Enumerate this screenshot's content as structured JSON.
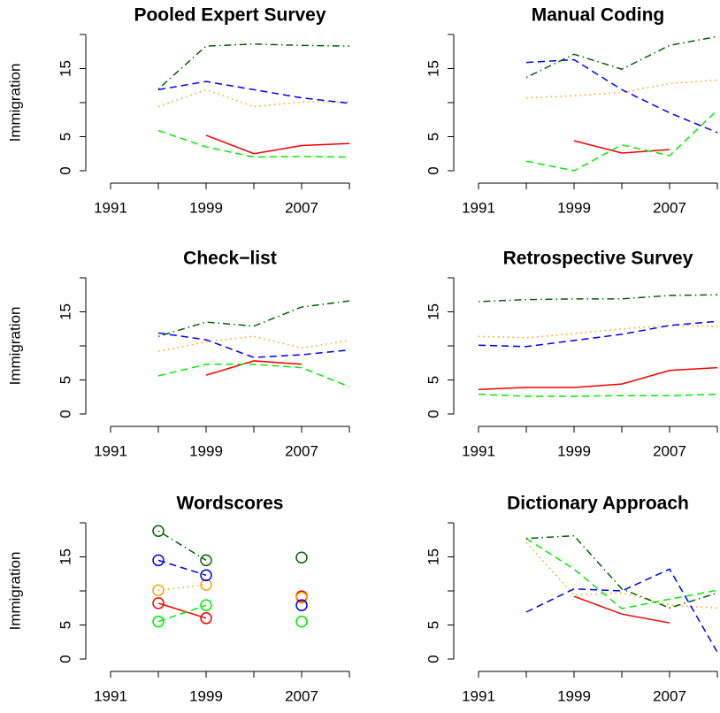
{
  "chart_data": [
    {
      "type": "line",
      "title": "Pooled Expert Survey",
      "ylabel": "Immigration",
      "x": [
        1991,
        1995,
        1999,
        2003,
        2007,
        2011
      ],
      "xlim": [
        1991,
        2011
      ],
      "ylim": [
        0,
        20
      ],
      "xticks": [
        1991,
        {
          "value": 1995,
          "label": null
        },
        1999,
        {
          "value": 2003,
          "label": null
        },
        2007,
        {
          "value": 2011,
          "label": null
        }
      ],
      "yticks": [
        0,
        5,
        {
          "value": 10,
          "label": null
        },
        15,
        {
          "value": 20,
          "label": null
        }
      ],
      "series": [
        {
          "color": "#ff0000",
          "linetype": "solid",
          "values": [
            null,
            null,
            5.2,
            2.5,
            3.7,
            4.0
          ]
        },
        {
          "color": "#00ee00",
          "linetype": "dashed",
          "values": [
            null,
            5.9,
            3.5,
            2.0,
            2.1,
            2.0
          ]
        },
        {
          "color": "#ffa500",
          "linetype": "dotted",
          "values": [
            null,
            9.4,
            11.9,
            9.4,
            10.1,
            10.1
          ]
        },
        {
          "color": "#0000ff",
          "linetype": "dashed",
          "values": [
            null,
            11.9,
            13.1,
            11.9,
            10.7,
            9.9
          ]
        },
        {
          "color": "#006400",
          "linetype": "dotdash",
          "values": [
            null,
            12.0,
            18.3,
            18.6,
            18.4,
            18.3
          ]
        }
      ]
    },
    {
      "type": "line",
      "title": "Manual Coding",
      "x": [
        1991,
        1995,
        1999,
        2003,
        2007,
        2011
      ],
      "xlim": [
        1991,
        2011
      ],
      "ylim": [
        0,
        20
      ],
      "xticks": [
        1991,
        {
          "value": 1995,
          "label": null
        },
        1999,
        {
          "value": 2003,
          "label": null
        },
        2007,
        {
          "value": 2011,
          "label": null
        }
      ],
      "yticks": [
        0,
        5,
        {
          "value": 10,
          "label": null
        },
        15,
        {
          "value": 20,
          "label": null
        }
      ],
      "series": [
        {
          "color": "#ff0000",
          "linetype": "solid",
          "values": [
            null,
            null,
            4.4,
            2.6,
            3.1,
            null
          ]
        },
        {
          "color": "#00ee00",
          "linetype": "dashed",
          "values": [
            null,
            1.4,
            0,
            3.8,
            2.2,
            8.9
          ]
        },
        {
          "color": "#ffa500",
          "linetype": "dotted",
          "values": [
            null,
            10.7,
            11.0,
            11.5,
            12.8,
            13.3
          ]
        },
        {
          "color": "#0000ff",
          "linetype": "dashed",
          "values": [
            null,
            15.9,
            16.3,
            11.9,
            8.5,
            5.6
          ]
        },
        {
          "color": "#006400",
          "linetype": "dotdash",
          "values": [
            null,
            13.7,
            17.1,
            14.9,
            18.4,
            19.7
          ]
        }
      ]
    },
    {
      "type": "line",
      "title": "Check−list",
      "ylabel": "Immigration",
      "x": [
        1991,
        1995,
        1999,
        2003,
        2007,
        2011
      ],
      "xlim": [
        1991,
        2011
      ],
      "ylim": [
        0,
        20
      ],
      "xticks": [
        1991,
        {
          "value": 1995,
          "label": null
        },
        1999,
        {
          "value": 2003,
          "label": null
        },
        2007,
        {
          "value": 2011,
          "label": null
        }
      ],
      "yticks": [
        0,
        5,
        {
          "value": 10,
          "label": null
        },
        15,
        {
          "value": 20,
          "label": null
        }
      ],
      "series": [
        {
          "color": "#ff0000",
          "linetype": "solid",
          "values": [
            null,
            null,
            5.7,
            7.8,
            7.3,
            null
          ]
        },
        {
          "color": "#00ee00",
          "linetype": "dashed",
          "values": [
            null,
            5.6,
            7.3,
            7.3,
            6.8,
            4.0
          ]
        },
        {
          "color": "#ffa500",
          "linetype": "dotted",
          "values": [
            null,
            9.2,
            10.6,
            11.4,
            9.7,
            10.8
          ]
        },
        {
          "color": "#0000ff",
          "linetype": "dashed",
          "values": [
            null,
            11.9,
            10.9,
            8.3,
            8.7,
            9.4
          ]
        },
        {
          "color": "#006400",
          "linetype": "dotdash",
          "values": [
            null,
            11.4,
            13.5,
            12.9,
            15.7,
            16.6
          ]
        }
      ]
    },
    {
      "type": "line",
      "title": "Retrospective Survey",
      "x": [
        1991,
        1995,
        1999,
        2003,
        2007,
        2011
      ],
      "xlim": [
        1991,
        2011
      ],
      "ylim": [
        0,
        20
      ],
      "xticks": [
        1991,
        {
          "value": 1995,
          "label": null
        },
        1999,
        {
          "value": 2003,
          "label": null
        },
        2007,
        {
          "value": 2011,
          "label": null
        }
      ],
      "yticks": [
        0,
        5,
        {
          "value": 10,
          "label": null
        },
        15,
        {
          "value": 20,
          "label": null
        }
      ],
      "series": [
        {
          "color": "#ff0000",
          "linetype": "solid",
          "values": [
            3.6,
            3.9,
            3.9,
            4.4,
            6.4,
            6.8
          ]
        },
        {
          "color": "#00ee00",
          "linetype": "dashed",
          "values": [
            2.9,
            2.6,
            2.6,
            2.7,
            2.7,
            2.9
          ]
        },
        {
          "color": "#ffa500",
          "linetype": "dotted",
          "values": [
            11.4,
            11.2,
            11.8,
            12.5,
            13.0,
            12.9
          ]
        },
        {
          "color": "#0000ff",
          "linetype": "dashed",
          "values": [
            10.1,
            9.9,
            10.8,
            11.7,
            13.0,
            13.6
          ]
        },
        {
          "color": "#006400",
          "linetype": "dotdash",
          "values": [
            16.5,
            16.8,
            16.9,
            16.9,
            17.4,
            17.5
          ]
        }
      ]
    },
    {
      "type": "line",
      "title": "Wordscores",
      "ylabel": "Immigration",
      "markers": true,
      "x": [
        1991,
        1995,
        1999,
        2003,
        2007,
        2011
      ],
      "xlim": [
        1991,
        2011
      ],
      "ylim": [
        0,
        20
      ],
      "xticks": [
        1991,
        {
          "value": 1995,
          "label": null
        },
        1999,
        {
          "value": 2003,
          "label": null
        },
        2007,
        {
          "value": 2011,
          "label": null
        }
      ],
      "yticks": [
        0,
        5,
        {
          "value": 10,
          "label": null
        },
        15,
        {
          "value": 20,
          "label": null
        }
      ],
      "series": [
        {
          "color": "#ff0000",
          "linetype": "solid",
          "values": [
            null,
            8.2,
            6.0,
            null,
            9.2,
            null
          ]
        },
        {
          "color": "#00ee00",
          "linetype": "dashed",
          "values": [
            null,
            5.5,
            7.9,
            null,
            5.5,
            null
          ]
        },
        {
          "color": "#ffa500",
          "linetype": "dotted",
          "values": [
            null,
            10.1,
            10.9,
            null,
            9.0,
            null
          ]
        },
        {
          "color": "#0000ff",
          "linetype": "dashed",
          "values": [
            null,
            14.5,
            12.3,
            null,
            7.9,
            null
          ]
        },
        {
          "color": "#006400",
          "linetype": "dotdash",
          "values": [
            null,
            18.8,
            14.5,
            null,
            14.9,
            null
          ]
        }
      ]
    },
    {
      "type": "line",
      "title": "Dictionary Approach",
      "x": [
        1991,
        1995,
        1999,
        2003,
        2007,
        2011
      ],
      "xlim": [
        1991,
        2011
      ],
      "ylim": [
        0,
        20
      ],
      "xticks": [
        1991,
        {
          "value": 1995,
          "label": null
        },
        1999,
        {
          "value": 2003,
          "label": null
        },
        2007,
        {
          "value": 2011,
          "label": null
        }
      ],
      "yticks": [
        0,
        5,
        {
          "value": 10,
          "label": null
        },
        15,
        {
          "value": 20,
          "label": null
        }
      ],
      "series": [
        {
          "color": "#ff0000",
          "linetype": "solid",
          "values": [
            null,
            null,
            9.2,
            6.6,
            5.3,
            null
          ]
        },
        {
          "color": "#00ee00",
          "linetype": "dashed",
          "values": [
            null,
            17.7,
            13.2,
            7.4,
            8.8,
            10.1
          ]
        },
        {
          "color": "#ffa500",
          "linetype": "dotted",
          "values": [
            null,
            17.1,
            9.4,
            9.7,
            7.9,
            7.5
          ]
        },
        {
          "color": "#0000ff",
          "linetype": "dashed",
          "values": [
            null,
            6.9,
            10.3,
            10.0,
            13.2,
            1.0
          ]
        },
        {
          "color": "#006400",
          "linetype": "dotdash",
          "values": [
            null,
            17.7,
            18.1,
            10.3,
            7.5,
            9.7
          ]
        }
      ]
    }
  ]
}
